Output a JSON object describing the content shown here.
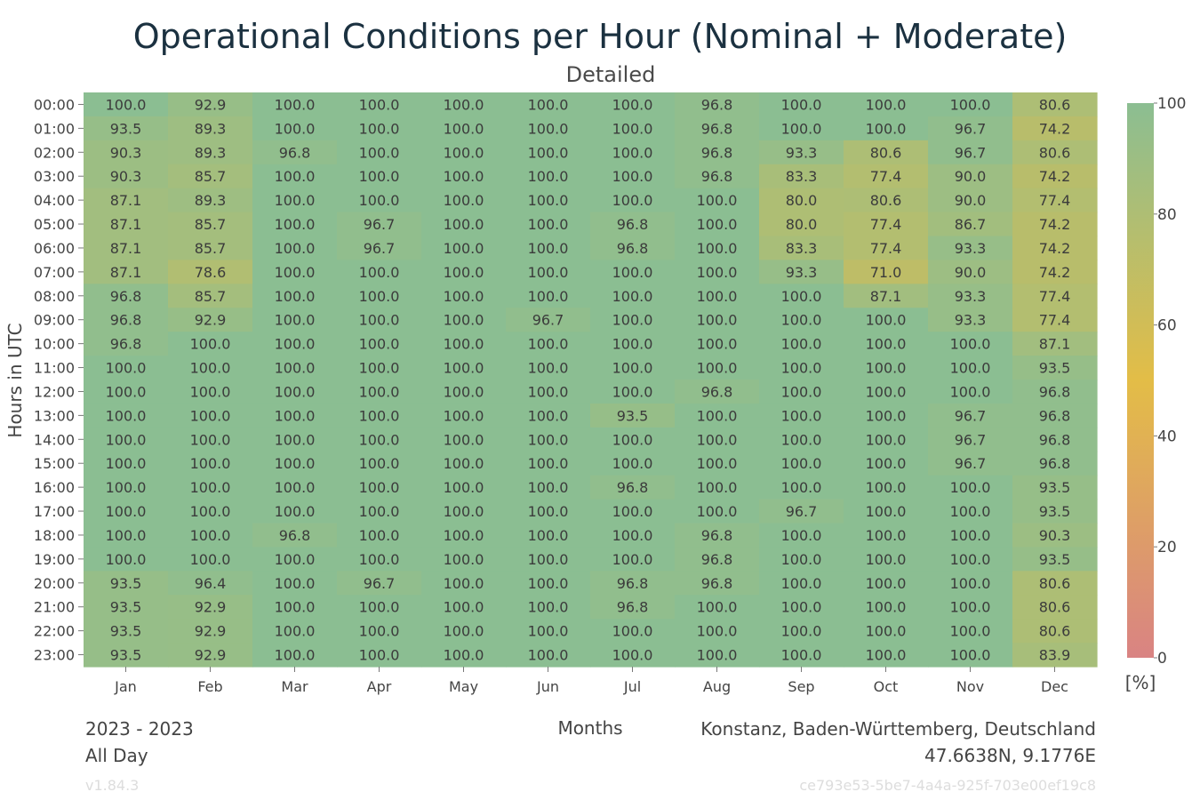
{
  "chart_data": {
    "type": "heatmap",
    "title": "Operational Conditions per Hour (Nominal + Moderate)",
    "subtitle": "Detailed",
    "xlabel": "Months",
    "ylabel": "Hours in UTC",
    "x": [
      "Jan",
      "Feb",
      "Mar",
      "Apr",
      "May",
      "Jun",
      "Jul",
      "Aug",
      "Sep",
      "Oct",
      "Nov",
      "Dec"
    ],
    "y": [
      "00:00",
      "01:00",
      "02:00",
      "03:00",
      "04:00",
      "05:00",
      "06:00",
      "07:00",
      "08:00",
      "09:00",
      "10:00",
      "11:00",
      "12:00",
      "13:00",
      "14:00",
      "15:00",
      "16:00",
      "17:00",
      "18:00",
      "19:00",
      "20:00",
      "21:00",
      "22:00",
      "23:00"
    ],
    "values": [
      [
        100.0,
        92.9,
        100.0,
        100.0,
        100.0,
        100.0,
        100.0,
        96.8,
        100.0,
        100.0,
        100.0,
        80.6
      ],
      [
        93.5,
        89.3,
        100.0,
        100.0,
        100.0,
        100.0,
        100.0,
        96.8,
        100.0,
        100.0,
        96.7,
        74.2
      ],
      [
        90.3,
        89.3,
        96.8,
        100.0,
        100.0,
        100.0,
        100.0,
        96.8,
        93.3,
        80.6,
        96.7,
        80.6
      ],
      [
        90.3,
        85.7,
        100.0,
        100.0,
        100.0,
        100.0,
        100.0,
        96.8,
        83.3,
        77.4,
        90.0,
        74.2
      ],
      [
        87.1,
        89.3,
        100.0,
        100.0,
        100.0,
        100.0,
        100.0,
        100.0,
        80.0,
        80.6,
        90.0,
        77.4
      ],
      [
        87.1,
        85.7,
        100.0,
        96.7,
        100.0,
        100.0,
        96.8,
        100.0,
        80.0,
        77.4,
        86.7,
        74.2
      ],
      [
        87.1,
        85.7,
        100.0,
        96.7,
        100.0,
        100.0,
        96.8,
        100.0,
        83.3,
        77.4,
        93.3,
        74.2
      ],
      [
        87.1,
        78.6,
        100.0,
        100.0,
        100.0,
        100.0,
        100.0,
        100.0,
        93.3,
        71.0,
        90.0,
        74.2
      ],
      [
        96.8,
        85.7,
        100.0,
        100.0,
        100.0,
        100.0,
        100.0,
        100.0,
        100.0,
        87.1,
        93.3,
        77.4
      ],
      [
        96.8,
        92.9,
        100.0,
        100.0,
        100.0,
        96.7,
        100.0,
        100.0,
        100.0,
        100.0,
        93.3,
        77.4
      ],
      [
        96.8,
        100.0,
        100.0,
        100.0,
        100.0,
        100.0,
        100.0,
        100.0,
        100.0,
        100.0,
        100.0,
        87.1
      ],
      [
        100.0,
        100.0,
        100.0,
        100.0,
        100.0,
        100.0,
        100.0,
        100.0,
        100.0,
        100.0,
        100.0,
        93.5
      ],
      [
        100.0,
        100.0,
        100.0,
        100.0,
        100.0,
        100.0,
        100.0,
        96.8,
        100.0,
        100.0,
        100.0,
        96.8
      ],
      [
        100.0,
        100.0,
        100.0,
        100.0,
        100.0,
        100.0,
        93.5,
        100.0,
        100.0,
        100.0,
        96.7,
        96.8
      ],
      [
        100.0,
        100.0,
        100.0,
        100.0,
        100.0,
        100.0,
        100.0,
        100.0,
        100.0,
        100.0,
        96.7,
        96.8
      ],
      [
        100.0,
        100.0,
        100.0,
        100.0,
        100.0,
        100.0,
        100.0,
        100.0,
        100.0,
        100.0,
        96.7,
        96.8
      ],
      [
        100.0,
        100.0,
        100.0,
        100.0,
        100.0,
        100.0,
        96.8,
        100.0,
        100.0,
        100.0,
        100.0,
        93.5
      ],
      [
        100.0,
        100.0,
        100.0,
        100.0,
        100.0,
        100.0,
        100.0,
        100.0,
        96.7,
        100.0,
        100.0,
        93.5
      ],
      [
        100.0,
        100.0,
        96.8,
        100.0,
        100.0,
        100.0,
        100.0,
        96.8,
        100.0,
        100.0,
        100.0,
        90.3
      ],
      [
        100.0,
        100.0,
        100.0,
        100.0,
        100.0,
        100.0,
        100.0,
        96.8,
        100.0,
        100.0,
        100.0,
        93.5
      ],
      [
        93.5,
        96.4,
        100.0,
        96.7,
        100.0,
        100.0,
        96.8,
        96.8,
        100.0,
        100.0,
        100.0,
        80.6
      ],
      [
        93.5,
        92.9,
        100.0,
        100.0,
        100.0,
        100.0,
        96.8,
        100.0,
        100.0,
        100.0,
        100.0,
        80.6
      ],
      [
        93.5,
        92.9,
        100.0,
        100.0,
        100.0,
        100.0,
        100.0,
        100.0,
        100.0,
        100.0,
        100.0,
        80.6
      ],
      [
        93.5,
        92.9,
        100.0,
        100.0,
        100.0,
        100.0,
        100.0,
        100.0,
        100.0,
        100.0,
        100.0,
        83.9
      ]
    ],
    "colorbar": {
      "range": [
        0,
        100
      ],
      "ticks": [
        0,
        20,
        40,
        60,
        80,
        100
      ],
      "unit": "[%]",
      "stops": [
        {
          "value": 0,
          "color": "#d98383"
        },
        {
          "value": 50,
          "color": "#e3bd47"
        },
        {
          "value": 100,
          "color": "#8bbe92"
        }
      ]
    },
    "grid": false
  },
  "footer": {
    "period": "2023 - 2023",
    "time_filter": "All Day",
    "location": "Konstanz, Baden-Württemberg, Deutschland",
    "coordinates": "47.6638N, 9.1776E",
    "version": "v1.84.3",
    "id": "ce793e53-5be7-4a4a-925f-703e00ef19c8"
  }
}
